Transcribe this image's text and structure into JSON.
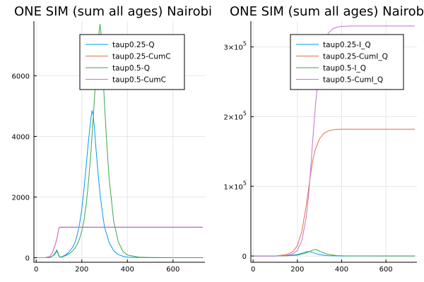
{
  "chart_data": [
    {
      "type": "line",
      "title": "ONE SIM (sum all ages) Nairobi",
      "xlabel": "",
      "ylabel": "",
      "xlim": [
        -10,
        740
      ],
      "ylim": [
        -150,
        7800
      ],
      "xticks": [
        0,
        200,
        400,
        600
      ],
      "xtick_labels": [
        "0",
        "200",
        "400",
        "600"
      ],
      "yticks": [
        0,
        2000,
        4000,
        6000
      ],
      "ytick_labels": [
        "0",
        "2000",
        "4000",
        "6000"
      ],
      "grid": true,
      "legend_position": "top-right",
      "series": [
        {
          "name": "taup0.25-Q",
          "color": "#009AFA",
          "x": [
            0,
            40,
            60,
            70,
            80,
            85,
            90,
            95,
            100,
            105,
            110,
            120,
            130,
            140,
            150,
            160,
            170,
            180,
            190,
            200,
            210,
            220,
            230,
            240,
            245,
            250,
            255,
            260,
            270,
            280,
            290,
            300,
            320,
            340,
            360,
            380,
            400,
            450,
            500,
            600,
            730
          ],
          "y": [
            0,
            0,
            10,
            40,
            100,
            150,
            230,
            150,
            50,
            20,
            30,
            60,
            100,
            160,
            240,
            350,
            500,
            750,
            1100,
            1600,
            2300,
            3100,
            3900,
            4600,
            4850,
            4700,
            4300,
            3800,
            2900,
            2100,
            1500,
            1000,
            500,
            230,
            100,
            50,
            20,
            5,
            2,
            1,
            0
          ]
        },
        {
          "name": "taup0.25-CumC",
          "color": "#E36F47",
          "x": [
            0,
            40,
            60,
            70,
            80,
            90,
            100,
            105,
            730
          ],
          "y": [
            0,
            0,
            40,
            150,
            350,
            600,
            980,
            1000,
            1000
          ]
        },
        {
          "name": "taup0.5-Q",
          "color": "#3EA44E",
          "x": [
            0,
            40,
            60,
            70,
            80,
            85,
            90,
            95,
            100,
            105,
            110,
            120,
            130,
            140,
            150,
            160,
            170,
            180,
            190,
            200,
            210,
            220,
            230,
            240,
            250,
            260,
            270,
            275,
            280,
            285,
            290,
            300,
            310,
            320,
            340,
            360,
            380,
            400,
            450,
            500,
            600,
            730
          ],
          "y": [
            0,
            0,
            10,
            40,
            120,
            180,
            260,
            170,
            60,
            15,
            20,
            40,
            70,
            110,
            160,
            230,
            320,
            440,
            620,
            880,
            1250,
            1800,
            2550,
            3500,
            4600,
            5800,
            6900,
            7400,
            7700,
            7300,
            6500,
            5000,
            3700,
            2600,
            1200,
            520,
            220,
            90,
            20,
            8,
            2,
            0
          ]
        },
        {
          "name": "taup0.5-CumC",
          "color": "#C271D2",
          "x": [
            0,
            40,
            60,
            70,
            80,
            90,
            100,
            105,
            730
          ],
          "y": [
            0,
            0,
            40,
            150,
            350,
            600,
            990,
            1010,
            1010
          ]
        }
      ]
    },
    {
      "type": "line",
      "title": "ONE SIM (sum all ages) Nairobi",
      "xlabel": "",
      "ylabel": "",
      "xlim": [
        -10,
        740
      ],
      "ylim": [
        -9000,
        337000
      ],
      "xticks": [
        0,
        200,
        400,
        600
      ],
      "xtick_labels": [
        "0",
        "200",
        "400",
        "600"
      ],
      "yticks": [
        0,
        100000,
        200000,
        300000
      ],
      "ytick_labels": [
        {
          "base": "0",
          "exp": ""
        },
        {
          "base": "1×10",
          "exp": "5"
        },
        {
          "base": "2×10",
          "exp": "5"
        },
        {
          "base": "3×10",
          "exp": "5"
        }
      ],
      "grid": true,
      "legend_position": "top-right",
      "series": [
        {
          "name": "taup0.25-I_Q",
          "color": "#009AFA",
          "x": [
            0,
            100,
            150,
            200,
            220,
            240,
            250,
            260,
            280,
            300,
            340,
            400,
            730
          ],
          "y": [
            0,
            0,
            300,
            2000,
            4000,
            6000,
            6500,
            6000,
            3800,
            2000,
            400,
            50,
            0
          ]
        },
        {
          "name": "taup0.25-CumI_Q",
          "color": "#E36F47",
          "x": [
            0,
            100,
            150,
            180,
            200,
            220,
            240,
            250,
            260,
            270,
            280,
            300,
            320,
            340,
            360,
            380,
            400,
            450,
            500,
            730
          ],
          "y": [
            0,
            0,
            2000,
            6000,
            15000,
            35000,
            72000,
            95000,
            118000,
            138000,
            152000,
            168000,
            176000,
            179500,
            181000,
            181800,
            182000,
            182000,
            182000,
            182000
          ]
        },
        {
          "name": "taup0.5-I_Q",
          "color": "#3EA44E",
          "x": [
            0,
            100,
            150,
            200,
            230,
            250,
            270,
            280,
            290,
            310,
            340,
            380,
            420,
            730
          ],
          "y": [
            0,
            0,
            200,
            1200,
            3500,
            5800,
            8500,
            9200,
            8600,
            5500,
            2200,
            500,
            80,
            0
          ]
        },
        {
          "name": "taup0.5-CumI_Q",
          "color": "#C271D2",
          "x": [
            0,
            100,
            150,
            180,
            200,
            220,
            240,
            250,
            260,
            270,
            280,
            290,
            300,
            320,
            340,
            360,
            380,
            400,
            450,
            500,
            730
          ],
          "y": [
            0,
            0,
            1000,
            3000,
            8000,
            22000,
            55000,
            85000,
            125000,
            168000,
            210000,
            245000,
            272000,
            305000,
            320000,
            326000,
            328500,
            329500,
            330000,
            330000,
            330000
          ]
        }
      ]
    }
  ]
}
